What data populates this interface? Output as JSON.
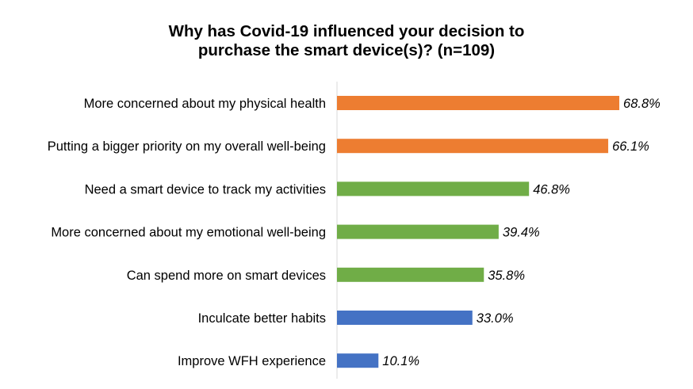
{
  "chart_data": {
    "type": "bar",
    "orientation": "horizontal",
    "title_lines": [
      "Why has Covid-19 influenced your decision to",
      "purchase the smart device(s)? (n=109)"
    ],
    "categories": [
      "More concerned about my physical health",
      "Putting a bigger priority on my overall well-being",
      "Need a smart device to track my activities",
      "More concerned about my emotional well-being",
      "Can spend more on smart devices",
      "Inculcate better habits",
      "Improve WFH experience"
    ],
    "values": [
      68.8,
      66.1,
      46.8,
      39.4,
      35.8,
      33.0,
      10.1
    ],
    "value_labels": [
      "68.8%",
      "66.1%",
      "46.8%",
      "39.4%",
      "35.8%",
      "33.0%",
      "10.1%"
    ],
    "bar_colors": [
      "#ED7D31",
      "#ED7D31",
      "#70AD47",
      "#70AD47",
      "#70AD47",
      "#4472C4",
      "#4472C4"
    ],
    "xlim": [
      0,
      70
    ],
    "grid": false,
    "legend": "none"
  }
}
